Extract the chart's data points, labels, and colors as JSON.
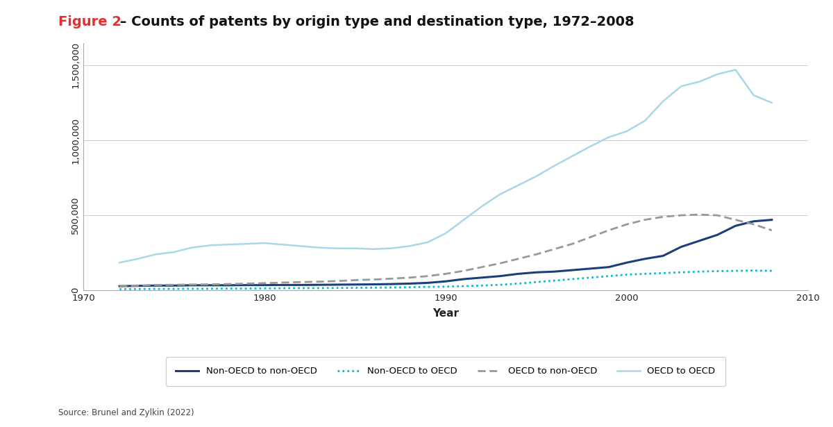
{
  "title_red": "Figure 2",
  "title_black": " – Counts of patents by origin type and destination type, 1972–2008",
  "xlabel": "Year",
  "source": "Source: Brunel and Zylkin (2022)",
  "background_color": "#ffffff",
  "ylim": [
    0,
    1650000
  ],
  "xlim": [
    1970,
    2010
  ],
  "yticks": [
    0,
    500000,
    1000000,
    1500000
  ],
  "xticks": [
    1970,
    1980,
    1990,
    2000,
    2010
  ],
  "series": {
    "non_oecd_to_non_oecd": {
      "label": "Non-OECD to non-OECD",
      "color": "#1a3f7a",
      "linestyle": "solid",
      "linewidth": 2.2,
      "years": [
        1972,
        1973,
        1974,
        1975,
        1976,
        1977,
        1978,
        1979,
        1980,
        1981,
        1982,
        1983,
        1984,
        1985,
        1986,
        1987,
        1988,
        1989,
        1990,
        1991,
        1992,
        1993,
        1994,
        1995,
        1996,
        1997,
        1998,
        1999,
        2000,
        2001,
        2002,
        2003,
        2004,
        2005,
        2006,
        2007,
        2008
      ],
      "values": [
        28000,
        30000,
        32000,
        32000,
        34000,
        34000,
        34000,
        35000,
        35000,
        36000,
        36000,
        37000,
        38000,
        39000,
        40000,
        42000,
        45000,
        50000,
        60000,
        75000,
        85000,
        95000,
        110000,
        120000,
        125000,
        135000,
        145000,
        155000,
        185000,
        210000,
        230000,
        290000,
        330000,
        370000,
        430000,
        460000,
        470000
      ]
    },
    "non_oecd_to_oecd": {
      "label": "Non-OECD to OECD",
      "color": "#00bcd4",
      "linestyle": "dotted",
      "linewidth": 2.0,
      "years": [
        1972,
        1973,
        1974,
        1975,
        1976,
        1977,
        1978,
        1979,
        1980,
        1981,
        1982,
        1983,
        1984,
        1985,
        1986,
        1987,
        1988,
        1989,
        1990,
        1991,
        1992,
        1993,
        1994,
        1995,
        1996,
        1997,
        1998,
        1999,
        2000,
        2001,
        2002,
        2003,
        2004,
        2005,
        2006,
        2007,
        2008
      ],
      "values": [
        8000,
        9000,
        10000,
        10000,
        11000,
        11000,
        12000,
        12000,
        13000,
        14000,
        15000,
        15000,
        16000,
        17000,
        18000,
        19000,
        21000,
        23000,
        25000,
        28000,
        32000,
        37000,
        45000,
        55000,
        65000,
        75000,
        85000,
        95000,
        105000,
        110000,
        115000,
        120000,
        125000,
        128000,
        130000,
        132000,
        130000
      ]
    },
    "oecd_to_non_oecd": {
      "label": "OECD to non-OECD",
      "color": "#999999",
      "linestyle": "dashed",
      "linewidth": 2.0,
      "years": [
        1972,
        1973,
        1974,
        1975,
        1976,
        1977,
        1978,
        1979,
        1980,
        1981,
        1982,
        1983,
        1984,
        1985,
        1986,
        1987,
        1988,
        1989,
        1990,
        1991,
        1992,
        1993,
        1994,
        1995,
        1996,
        1997,
        1998,
        1999,
        2000,
        2001,
        2002,
        2003,
        2004,
        2005,
        2006,
        2007,
        2008
      ],
      "values": [
        28000,
        32000,
        36000,
        37000,
        39000,
        40000,
        42000,
        45000,
        48000,
        52000,
        55000,
        58000,
        62000,
        68000,
        72000,
        78000,
        85000,
        95000,
        110000,
        130000,
        155000,
        180000,
        210000,
        240000,
        275000,
        310000,
        355000,
        400000,
        440000,
        470000,
        490000,
        500000,
        505000,
        500000,
        470000,
        440000,
        400000
      ]
    },
    "oecd_to_oecd": {
      "label": "OECD to OECD",
      "color": "#a8d8e8",
      "linestyle": "solid",
      "linewidth": 1.8,
      "years": [
        1972,
        1973,
        1974,
        1975,
        1976,
        1977,
        1978,
        1979,
        1980,
        1981,
        1982,
        1983,
        1984,
        1985,
        1986,
        1987,
        1988,
        1989,
        1990,
        1991,
        1992,
        1993,
        1994,
        1995,
        1996,
        1997,
        1998,
        1999,
        2000,
        2001,
        2002,
        2003,
        2004,
        2005,
        2006,
        2007,
        2008
      ],
      "values": [
        185000,
        210000,
        240000,
        255000,
        285000,
        300000,
        305000,
        310000,
        315000,
        305000,
        295000,
        285000,
        280000,
        280000,
        275000,
        280000,
        295000,
        320000,
        380000,
        470000,
        560000,
        640000,
        700000,
        760000,
        830000,
        895000,
        960000,
        1020000,
        1060000,
        1130000,
        1260000,
        1360000,
        1390000,
        1440000,
        1470000,
        1300000,
        1250000
      ]
    }
  }
}
